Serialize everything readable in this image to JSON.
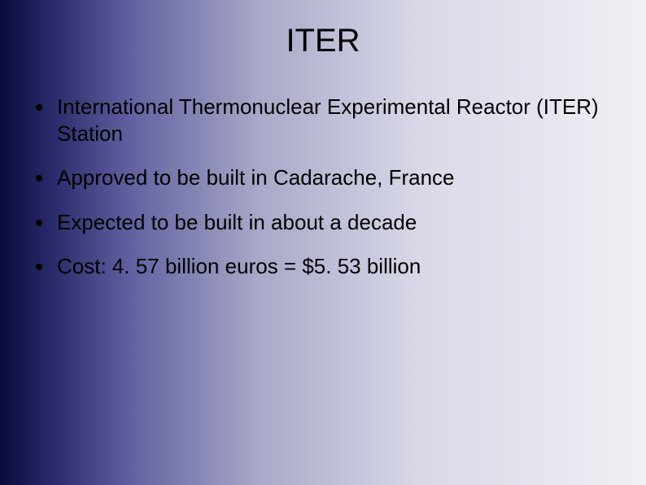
{
  "slide": {
    "title": "ITER",
    "title_fontsize": 40,
    "body_fontsize": 26,
    "text_color": "#000000",
    "gradient_stops": [
      "#0a0a3a",
      "#2a2a6a",
      "#6060a0",
      "#a8a8c8",
      "#d8d8e8",
      "#f0f0f5"
    ],
    "bullets": [
      "International Thermonuclear Experimental Reactor (ITER) Station",
      "Approved to be built in Cadarache, France",
      "Expected to be built in about a decade",
      "Cost: 4. 57 billion euros = $5. 53 billion"
    ],
    "bullet_marker_color": "#000000"
  }
}
